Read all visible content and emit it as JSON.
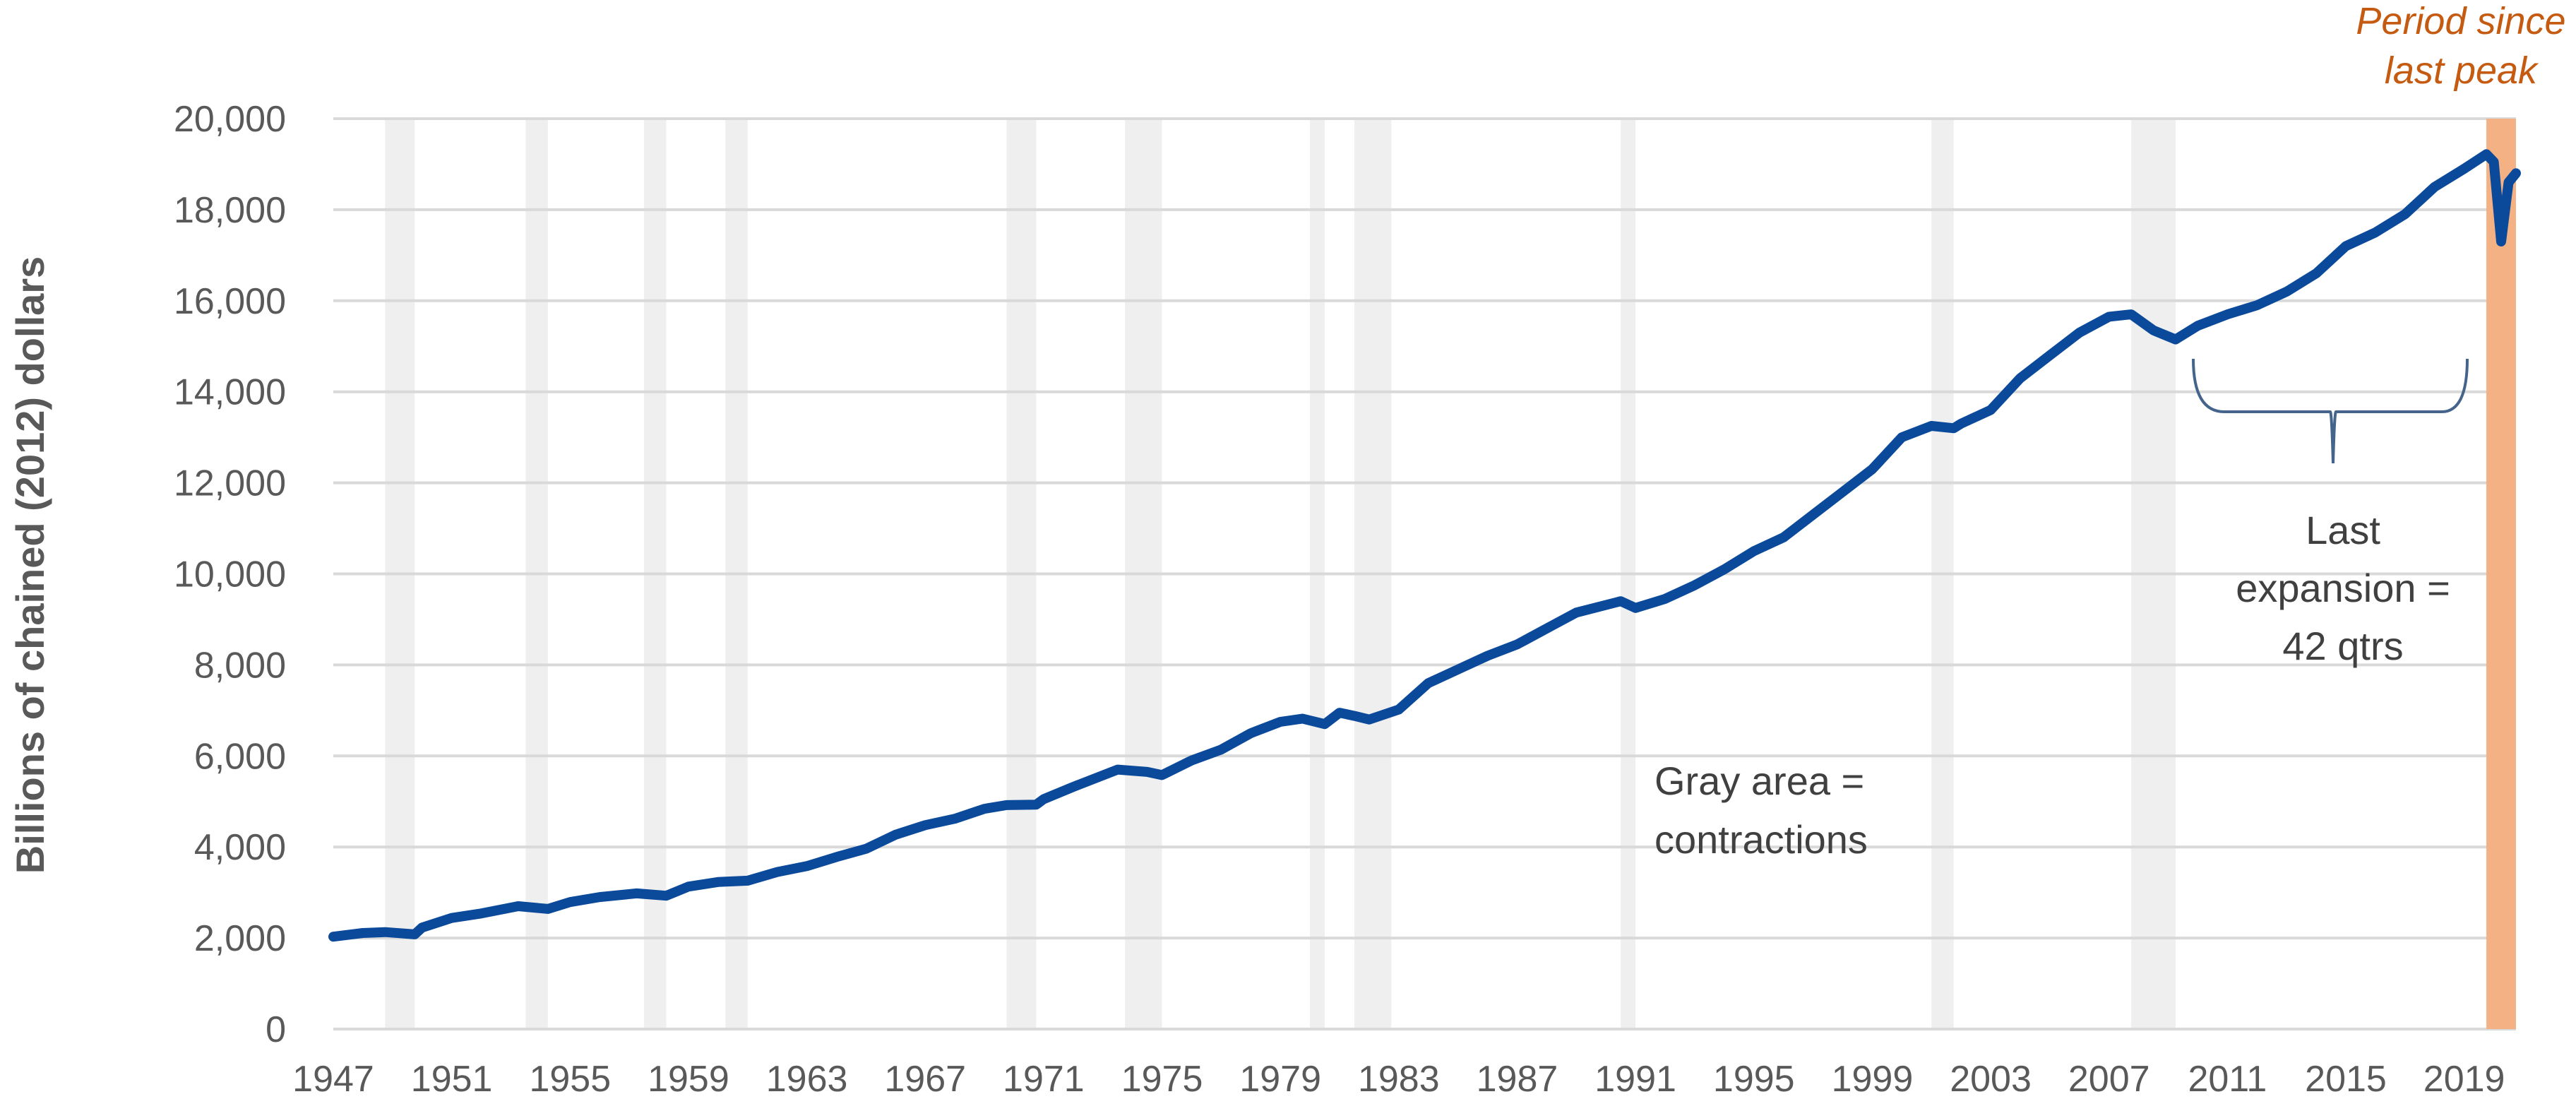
{
  "chart_data": {
    "type": "line",
    "title": "",
    "ylabel": "Billions of chained (2012) dollars",
    "xlabel": "",
    "xlim": [
      1947.0,
      2020.75
    ],
    "ylim": [
      0,
      20000
    ],
    "y_ticks": [
      0,
      2000,
      4000,
      6000,
      8000,
      10000,
      12000,
      14000,
      16000,
      18000,
      20000
    ],
    "y_tick_labels": [
      "0",
      "2,000",
      "4,000",
      "6,000",
      "8,000",
      "10,000",
      "12,000",
      "14,000",
      "16,000",
      "18,000",
      "20,000"
    ],
    "x_ticks": [
      1947,
      1951,
      1955,
      1959,
      1963,
      1967,
      1971,
      1975,
      1979,
      1983,
      1987,
      1991,
      1995,
      1999,
      2003,
      2007,
      2011,
      2015,
      2019
    ],
    "x_tick_labels": [
      "1947",
      "1951",
      "1955",
      "1959",
      "1963",
      "1967",
      "1971",
      "1975",
      "1979",
      "1983",
      "1987",
      "1991",
      "1995",
      "1999",
      "2003",
      "2007",
      "2011",
      "2015",
      "2019"
    ],
    "grid": "horizontal",
    "line_color": "#0b4a9b",
    "recession_color": "#efefef",
    "recessions": [
      [
        1948.75,
        1949.75
      ],
      [
        1953.5,
        1954.25
      ],
      [
        1957.5,
        1958.25
      ],
      [
        1960.25,
        1961.0
      ],
      [
        1969.75,
        1970.75
      ],
      [
        1973.75,
        1975.0
      ],
      [
        1980.0,
        1980.5
      ],
      [
        1981.5,
        1982.75
      ],
      [
        1990.5,
        1991.0
      ],
      [
        2001.0,
        2001.75
      ],
      [
        2007.75,
        2009.25
      ]
    ],
    "current_period": [
      2019.75,
      2020.75
    ],
    "current_period_color": "#f4b183",
    "series": [
      {
        "name": "",
        "x": [
          1947.0,
          1948.0,
          1948.75,
          1949.75,
          1950.0,
          1951.0,
          1952.0,
          1953.25,
          1954.25,
          1955.0,
          1956.0,
          1957.25,
          1958.25,
          1959.0,
          1960.0,
          1961.0,
          1962.0,
          1963.0,
          1964.0,
          1965.0,
          1966.0,
          1967.0,
          1968.0,
          1969.0,
          1969.75,
          1970.75,
          1971.0,
          1972.0,
          1973.5,
          1974.5,
          1975.0,
          1976.0,
          1977.0,
          1978.0,
          1979.0,
          1979.75,
          1980.5,
          1981.0,
          1981.5,
          1982.0,
          1983.0,
          1984.0,
          1985.0,
          1986.0,
          1987.0,
          1988.0,
          1989.0,
          1990.5,
          1991.0,
          1992.0,
          1993.0,
          1994.0,
          1995.0,
          1996.0,
          1997.0,
          1998.0,
          1999.0,
          2000.0,
          2001.0,
          2001.75,
          2002.0,
          2003.0,
          2004.0,
          2005.0,
          2006.0,
          2007.0,
          2007.75,
          2008.5,
          2009.25,
          2010.0,
          2011.0,
          2012.0,
          2013.0,
          2014.0,
          2015.0,
          2016.0,
          2017.0,
          2018.0,
          2019.0,
          2019.75,
          2020.0,
          2020.25,
          2020.5,
          2020.75
        ],
        "y": [
          2030,
          2110,
          2130,
          2080,
          2230,
          2440,
          2540,
          2700,
          2640,
          2790,
          2900,
          2980,
          2930,
          3130,
          3230,
          3260,
          3450,
          3580,
          3780,
          3960,
          4270,
          4480,
          4620,
          4840,
          4920,
          4930,
          5050,
          5320,
          5700,
          5650,
          5580,
          5900,
          6140,
          6500,
          6750,
          6820,
          6700,
          6950,
          6880,
          6800,
          7020,
          7600,
          7900,
          8200,
          8450,
          8800,
          9150,
          9400,
          9250,
          9450,
          9750,
          10100,
          10500,
          10800,
          11300,
          11800,
          12300,
          13000,
          13250,
          13200,
          13300,
          13600,
          14300,
          14800,
          15300,
          15650,
          15700,
          15350,
          15150,
          15450,
          15700,
          15900,
          16200,
          16600,
          17200,
          17500,
          17900,
          18500,
          18900,
          19220,
          19050,
          17300,
          18600,
          18800
        ]
      }
    ],
    "annotations": {
      "period_since_line1": "Period since",
      "period_since_line2": "last peak",
      "last_expansion_line1": "Last",
      "last_expansion_line2": "expansion =",
      "last_expansion_line3": "42 qtrs",
      "gray_area_line1": "Gray area =",
      "gray_area_line2": "contractions"
    }
  }
}
